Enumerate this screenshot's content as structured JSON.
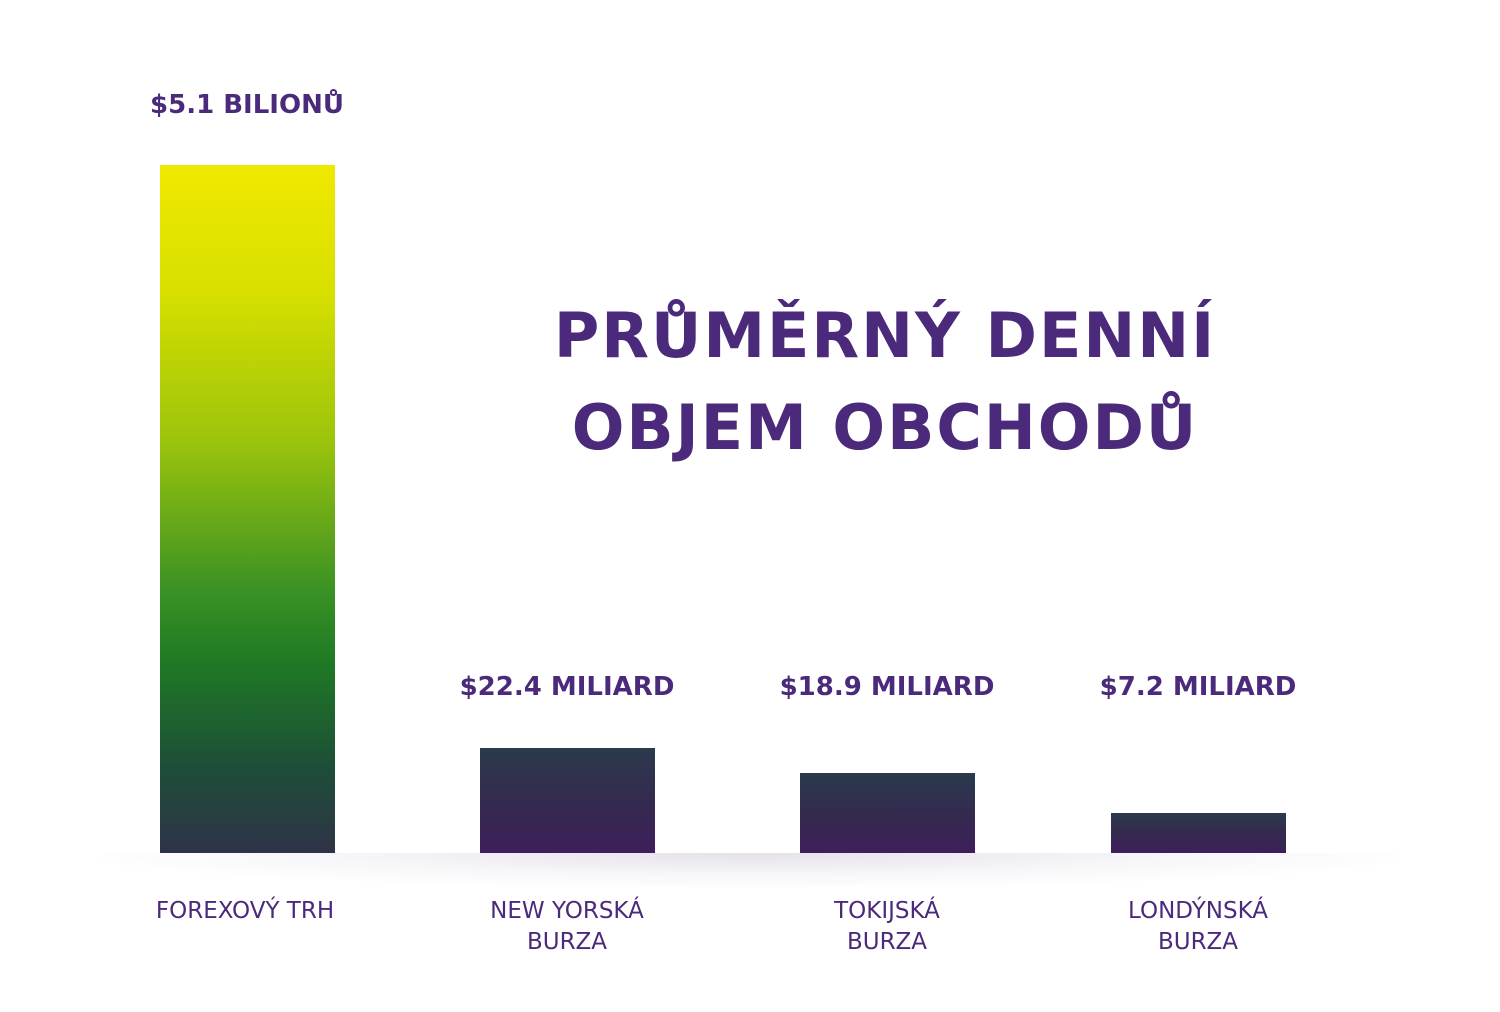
{
  "colors": {
    "text": "#4b2a7b",
    "bar_top_yellow": "#f0e800",
    "bar_green": "#1f7a24",
    "bar_dark": "#2f3348",
    "bar_purple": "#3e1f5b"
  },
  "chart_data": {
    "type": "bar",
    "title_lines": [
      "PRŮMĚRNÝ DENNÍ",
      "OBJEM OBCHODŮ"
    ],
    "categories": [
      {
        "key": "forex",
        "lines": [
          "FOREXOVÝ TRH"
        ],
        "value": 5100,
        "value_label": "$5.1 BILIONŮ"
      },
      {
        "key": "nyse",
        "lines": [
          "NEW YORSKÁ",
          "BURZA"
        ],
        "value": 22.4,
        "value_label": "$22.4 MILIARD"
      },
      {
        "key": "tokyo",
        "lines": [
          "TOKIJSKÁ",
          "BURZA"
        ],
        "value": 18.9,
        "value_label": "$18.9 MILIARD"
      },
      {
        "key": "london",
        "lines": [
          "LONDÝNSKÁ",
          "BURZA"
        ],
        "value": 7.2,
        "value_label": "$7.2 MILIARD"
      }
    ],
    "value_unit": "miliard USD",
    "scale": "not proportional (illustrative)",
    "grid": false,
    "legend": "none"
  }
}
